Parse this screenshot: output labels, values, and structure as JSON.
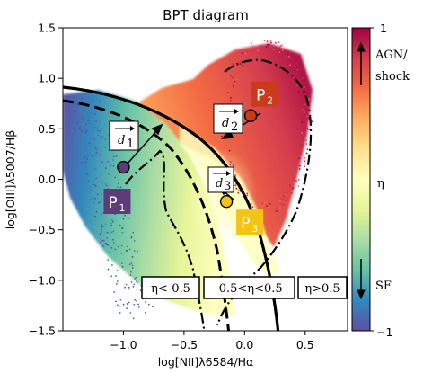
{
  "chart_data": {
    "type": "scatter",
    "title": "BPT diagram",
    "xlabel": "log[NII]λ6584/Hα",
    "ylabel": "log[OIII]λ5007/Hβ",
    "xlim": [
      -1.5,
      0.85
    ],
    "ylim": [
      -1.5,
      1.5
    ],
    "xticks": [
      "−1.0",
      "−0.5",
      "0.0",
      "0.5"
    ],
    "xtick_values": [
      -1.0,
      -0.5,
      0.0,
      0.5
    ],
    "yticks": [
      "1.5",
      "1.0",
      "0.5",
      "0.0",
      "−0.5",
      "−1.0",
      "−1.5"
    ],
    "ytick_values": [
      1.5,
      1.0,
      0.5,
      0.0,
      -0.5,
      -1.0,
      -1.5
    ],
    "colorbar": {
      "label": "η",
      "range": [
        -1,
        1
      ],
      "top_label": "1",
      "bottom_label": "−1",
      "top_annotation_line1": "AGN/",
      "top_annotation_line2": "shock",
      "bottom_annotation": "SF",
      "colors": [
        "#5e4fa2",
        "#3288bd",
        "#66c2a5",
        "#abdda4",
        "#e6f598",
        "#ffffbf",
        "#fee08b",
        "#fdae61",
        "#f46d43",
        "#d53e4f",
        "#9e0142"
      ]
    },
    "points": [
      {
        "label": "P",
        "sub": "1",
        "x": -1.0,
        "y": 0.12,
        "color": "#5e3c7a"
      },
      {
        "label": "P",
        "sub": "2",
        "x": 0.05,
        "y": 0.63,
        "color": "#cc3a1a"
      },
      {
        "label": "P",
        "sub": "3",
        "x": -0.15,
        "y": -0.22,
        "color": "#f2c418"
      }
    ],
    "distance_labels": [
      {
        "letter": "d",
        "sub": "1"
      },
      {
        "letter": "d",
        "sub": "2"
      },
      {
        "letter": "d",
        "sub": "3"
      }
    ],
    "regions": [
      "η<-0.5",
      "-0.5<η<0.5",
      "η>0.5"
    ],
    "curves": [
      {
        "style": "solid",
        "description": "Kewley maximum starburst line"
      },
      {
        "style": "dashed",
        "description": "Kauffmann line"
      },
      {
        "style": "dashdot",
        "description": "η = -0.5 contour"
      },
      {
        "style": "dashdot",
        "description": "η = 0.5 contour"
      }
    ]
  }
}
